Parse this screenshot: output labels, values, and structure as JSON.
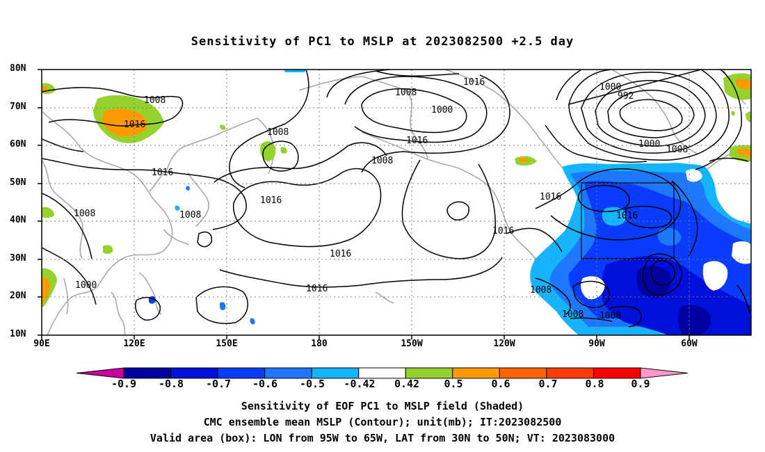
{
  "title": "Sensitivity of PC1 to MSLP at 2023082500 +2.5 day",
  "lat_labels": [
    "80N",
    "70N",
    "60N",
    "50N",
    "40N",
    "30N",
    "20N",
    "10N"
  ],
  "lon_labels": [
    "90E",
    "120E",
    "150E",
    "180",
    "150W",
    "120W",
    "90W",
    "60W"
  ],
  "contour_labels": {
    "l1008_asia": "1008",
    "l1016_asia": "1016",
    "l1008_mid": "1008",
    "l1016_asia2": "1016",
    "l1008_w": "1008",
    "l1008_japan": "1008",
    "l1000_w": "1000",
    "l1008_aleut": "1008",
    "l1000_aleut": "1000",
    "l1016_aleut": "1016",
    "l1008_aleut2": "1008",
    "l1016_pac": "1016",
    "l1016_pac2": "1016",
    "l1016_pac3": "1016",
    "l1016_n": "1016",
    "l1000_lab": "1000",
    "l992_lab": "992",
    "l1000_lab2": "1000",
    "l1008_lab": "1008",
    "l1016_us": "1016",
    "l1016_atl": "1016",
    "l1016_mex": "1016",
    "l1008_mex": "1008",
    "l1008_carib": "1008",
    "l1008_carib2": "1008"
  },
  "colorbar": {
    "labels": [
      "-0.9",
      "-0.8",
      "-0.7",
      "-0.6",
      "-0.5",
      "-0.42",
      "0.42",
      "0.5",
      "0.6",
      "0.7",
      "0.8",
      "0.9"
    ],
    "colors": [
      "#0000a0",
      "#0010d8",
      "#0a3cff",
      "#1e78ff",
      "#14b4ff",
      "#ffffff",
      "#96d22d",
      "#ff9a00",
      "#ff6400",
      "#ff3c00",
      "#ff0000"
    ],
    "low_extend_color": "#c800a0",
    "high_extend_color": "#ff9ac8"
  },
  "captions": [
    "Sensitivity of EOF PC1 to MSLP field (Shaded)",
    "CMC ensemble mean MSLP (Contour); unit(mb); IT:2023082500",
    "Valid area (box): LON from 95W to 65W, LAT from 30N to 50N; VT: 2023083000"
  ]
}
